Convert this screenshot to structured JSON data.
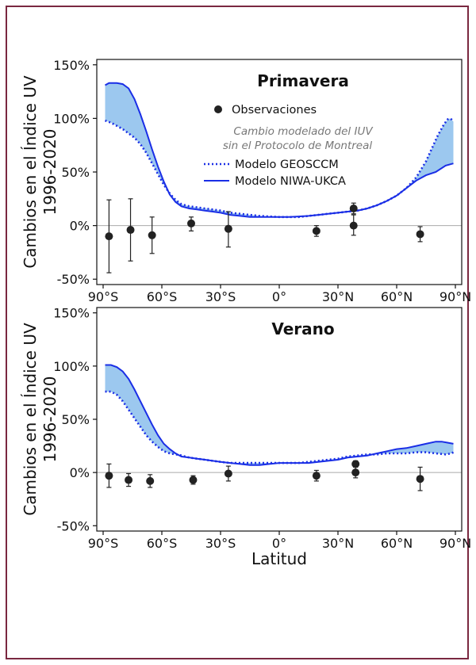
{
  "colors": {
    "frame": "#7a2840",
    "fill": "#9cc8ef",
    "geosccm": "#1a2ee6",
    "niwa": "#1a2ee6",
    "obs": "#222222",
    "zero_line": "#aaaaaa"
  },
  "chart_data": [
    {
      "type": "line",
      "title": "Primavera",
      "ylabel": "Cambios en el Índice UV\n1996-2020",
      "xlabel": "",
      "xlim": [
        -90,
        90
      ],
      "ylim": [
        -55,
        155
      ],
      "xticks": [
        -90,
        -60,
        -30,
        0,
        30,
        60,
        90
      ],
      "xtick_labels": [
        "90°S",
        "60°S",
        "30°S",
        "0°",
        "30°N",
        "60°N",
        "90°N"
      ],
      "yticks": [
        -50,
        0,
        50,
        100,
        150
      ],
      "ytick_labels": [
        "-50%",
        "0%",
        "50%",
        "100%",
        "150%"
      ],
      "legend": {
        "observations": "Observaciones",
        "note_line1": "Cambio modelado del IUV",
        "note_line2": "sin el Protocolo de Montreal",
        "geosccm": "Modelo GEOSCCM",
        "niwa": "Modelo NIWA-UKCA"
      },
      "series": [
        {
          "name": "Modelo NIWA-UKCA",
          "style": "solid",
          "x": [
            -89,
            -87,
            -85,
            -83,
            -80,
            -77,
            -74,
            -71,
            -68,
            -65,
            -62,
            -59,
            -56,
            -53,
            -50,
            -46,
            -42,
            -38,
            -34,
            -30,
            -25,
            -20,
            -15,
            -10,
            -5,
            0,
            5,
            10,
            15,
            20,
            25,
            30,
            35,
            40,
            45,
            50,
            55,
            60,
            65,
            70,
            75,
            80,
            85,
            89
          ],
          "y": [
            131,
            133,
            133,
            133,
            132,
            128,
            118,
            104,
            88,
            71,
            55,
            41,
            29,
            22,
            18,
            16,
            15,
            14,
            13,
            12,
            10,
            9,
            8,
            8,
            8,
            8,
            8,
            8.5,
            9,
            10,
            11,
            12,
            13,
            14,
            16,
            19,
            23,
            28,
            35,
            42,
            47,
            50,
            56,
            58
          ]
        },
        {
          "name": "Modelo GEOSCCM",
          "style": "dotted",
          "x": [
            -89,
            -86,
            -83,
            -80,
            -77,
            -74,
            -71,
            -68,
            -65,
            -62,
            -59,
            -56,
            -53,
            -50,
            -46,
            -42,
            -38,
            -34,
            -30,
            -25,
            -20,
            -15,
            -10,
            -5,
            0,
            5,
            10,
            15,
            20,
            25,
            30,
            35,
            40,
            45,
            50,
            55,
            60,
            65,
            70,
            75,
            78,
            81,
            84,
            86,
            87,
            88,
            89
          ],
          "y": [
            98,
            96,
            93,
            90,
            86,
            82,
            76,
            68,
            58,
            48,
            38,
            30,
            24,
            20,
            18,
            17,
            16,
            15,
            14,
            12,
            11,
            10,
            9,
            8.5,
            8,
            8,
            8,
            9,
            10,
            11,
            12,
            13,
            14,
            16,
            19,
            23,
            28,
            35,
            45,
            60,
            72,
            84,
            94,
            99,
            100,
            99,
            97
          ]
        }
      ],
      "observations": [
        {
          "x": -87,
          "y": -10,
          "lo": -44,
          "hi": 24
        },
        {
          "x": -76,
          "y": -4,
          "lo": -33,
          "hi": 25
        },
        {
          "x": -65,
          "y": -9,
          "lo": -26,
          "hi": 8
        },
        {
          "x": -45,
          "y": 2,
          "lo": -5,
          "hi": 8
        },
        {
          "x": -26,
          "y": -3,
          "lo": -20,
          "hi": 13
        },
        {
          "x": 19,
          "y": -5,
          "lo": -10,
          "hi": 0
        },
        {
          "x": 38,
          "y": 16,
          "lo": 11,
          "hi": 21
        },
        {
          "x": 38,
          "y": 0,
          "lo": -9,
          "hi": 10
        },
        {
          "x": 72,
          "y": -8,
          "lo": -15,
          "hi": -1
        }
      ]
    },
    {
      "type": "line",
      "title": "Verano",
      "ylabel": "Cambios en el Índice UV\n1996-2020",
      "xlabel": "Latitud",
      "xlim": [
        -90,
        90
      ],
      "ylim": [
        -55,
        155
      ],
      "xticks": [
        -90,
        -60,
        -30,
        0,
        30,
        60,
        90
      ],
      "xtick_labels": [
        "90°S",
        "60°S",
        "30°S",
        "0°",
        "30°N",
        "60°N",
        "90°N"
      ],
      "yticks": [
        -50,
        0,
        50,
        100,
        150
      ],
      "ytick_labels": [
        "-50%",
        "0%",
        "50%",
        "100%",
        "150%"
      ],
      "series": [
        {
          "name": "Modelo NIWA-UKCA",
          "style": "solid",
          "x": [
            -89,
            -86,
            -83,
            -80,
            -77,
            -74,
            -71,
            -68,
            -65,
            -62,
            -59,
            -56,
            -53,
            -50,
            -46,
            -42,
            -38,
            -34,
            -30,
            -25,
            -20,
            -15,
            -10,
            -5,
            0,
            5,
            10,
            15,
            20,
            25,
            30,
            35,
            40,
            45,
            50,
            55,
            60,
            65,
            70,
            75,
            80,
            83,
            86,
            89
          ],
          "y": [
            101,
            101,
            99,
            95,
            88,
            78,
            67,
            56,
            45,
            35,
            27,
            22,
            18,
            15,
            14,
            13,
            12,
            11,
            10,
            9,
            8,
            7,
            7,
            8,
            9,
            9,
            9,
            9,
            10,
            11,
            12,
            14,
            15,
            16,
            18,
            20,
            22,
            23,
            25,
            27,
            29,
            29,
            28,
            27
          ]
        },
        {
          "name": "Modelo GEOSCCM",
          "style": "dotted",
          "x": [
            -89,
            -86,
            -83,
            -80,
            -77,
            -74,
            -71,
            -68,
            -65,
            -62,
            -59,
            -56,
            -53,
            -50,
            -46,
            -42,
            -38,
            -34,
            -30,
            -25,
            -20,
            -15,
            -10,
            -5,
            0,
            5,
            10,
            15,
            20,
            25,
            30,
            35,
            40,
            45,
            50,
            55,
            60,
            65,
            70,
            75,
            80,
            85,
            88,
            89
          ],
          "y": [
            76,
            76,
            73,
            67,
            59,
            51,
            43,
            35,
            29,
            24,
            20,
            18,
            17,
            16,
            14,
            13,
            12,
            11,
            10,
            9,
            9,
            9,
            9,
            9,
            9,
            9,
            9,
            10,
            11,
            12,
            13,
            15,
            16,
            17,
            17,
            18,
            18,
            18,
            19,
            19,
            18,
            17,
            18,
            19
          ]
        }
      ],
      "observations": [
        {
          "x": -87,
          "y": -3,
          "lo": -14,
          "hi": 8
        },
        {
          "x": -77,
          "y": -7,
          "lo": -13,
          "hi": -1
        },
        {
          "x": -66,
          "y": -8,
          "lo": -14,
          "hi": -2
        },
        {
          "x": -44,
          "y": -7,
          "lo": -11,
          "hi": -3
        },
        {
          "x": -26,
          "y": -1,
          "lo": -8,
          "hi": 6
        },
        {
          "x": 19,
          "y": -3,
          "lo": -8,
          "hi": 2
        },
        {
          "x": 39,
          "y": 8,
          "lo": 5,
          "hi": 11
        },
        {
          "x": 39,
          "y": 0,
          "lo": -5,
          "hi": 5
        },
        {
          "x": 72,
          "y": -6,
          "lo": -17,
          "hi": 5
        }
      ]
    }
  ]
}
